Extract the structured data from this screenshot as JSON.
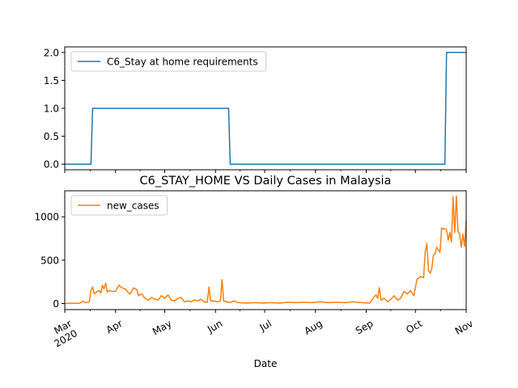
{
  "chart_data": [
    {
      "type": "line",
      "title": "",
      "xlabel": "",
      "ylabel": "",
      "ylim": [
        -0.1,
        2.1
      ],
      "yticks": [
        0.0,
        0.5,
        1.0,
        1.5,
        2.0
      ],
      "ytick_labels": [
        "0.0",
        "0.5",
        "1.0",
        "1.5",
        "2.0"
      ],
      "legend_position": "upper-left",
      "series": [
        {
          "name": "C6_Stay at home requirements",
          "color": "#1f77b4",
          "points": [
            [
              "2020-03-01",
              0
            ],
            [
              "2020-03-17",
              0
            ],
            [
              "2020-03-18",
              1
            ],
            [
              "2020-06-09",
              1
            ],
            [
              "2020-06-10",
              0
            ],
            [
              "2020-10-19",
              0
            ],
            [
              "2020-10-20",
              2
            ],
            [
              "2020-11-01",
              2
            ]
          ]
        }
      ]
    },
    {
      "type": "line",
      "title": "C6_STAY_HOME VS Daily Cases in Malaysia",
      "xlabel": "Date",
      "ylabel": "",
      "xlim": [
        "2020-03-01",
        "2020-11-01"
      ],
      "ylim": [
        -70,
        1300
      ],
      "yticks": [
        0,
        500,
        1000
      ],
      "ytick_labels": [
        "0",
        "500",
        "1000"
      ],
      "xticks": [
        "2020-03-01",
        "2020-04-01",
        "2020-05-01",
        "2020-06-01",
        "2020-07-01",
        "2020-08-01",
        "2020-09-01",
        "2020-10-01",
        "2020-11-01"
      ],
      "xtick_labels": [
        "Mar\n2020",
        "Apr",
        "May",
        "Jun",
        "Jul",
        "Aug",
        "Sep",
        "Oct",
        "Nov"
      ],
      "legend_position": "upper-left",
      "series": [
        {
          "name": "new_cases",
          "color": "#ff7f0e",
          "points": [
            [
              "2020-03-01",
              0
            ],
            [
              "2020-03-05",
              5
            ],
            [
              "2020-03-10",
              2
            ],
            [
              "2020-03-12",
              25
            ],
            [
              "2020-03-14",
              10
            ],
            [
              "2020-03-16",
              20
            ],
            [
              "2020-03-17",
              150
            ],
            [
              "2020-03-18",
              190
            ],
            [
              "2020-03-19",
              110
            ],
            [
              "2020-03-20",
              130
            ],
            [
              "2020-03-22",
              150
            ],
            [
              "2020-03-23",
              120
            ],
            [
              "2020-03-24",
              210
            ],
            [
              "2020-03-25",
              170
            ],
            [
              "2020-03-26",
              235
            ],
            [
              "2020-03-27",
              130
            ],
            [
              "2020-03-28",
              150
            ],
            [
              "2020-03-30",
              140
            ],
            [
              "2020-04-01",
              140
            ],
            [
              "2020-04-03",
              210
            ],
            [
              "2020-04-05",
              180
            ],
            [
              "2020-04-07",
              170
            ],
            [
              "2020-04-09",
              120
            ],
            [
              "2020-04-10",
              110
            ],
            [
              "2020-04-12",
              180
            ],
            [
              "2020-04-14",
              160
            ],
            [
              "2020-04-15",
              90
            ],
            [
              "2020-04-17",
              110
            ],
            [
              "2020-04-19",
              60
            ],
            [
              "2020-04-21",
              40
            ],
            [
              "2020-04-23",
              70
            ],
            [
              "2020-04-25",
              50
            ],
            [
              "2020-04-27",
              40
            ],
            [
              "2020-04-29",
              90
            ],
            [
              "2020-05-01",
              60
            ],
            [
              "2020-05-03",
              100
            ],
            [
              "2020-05-05",
              40
            ],
            [
              "2020-05-07",
              30
            ],
            [
              "2020-05-09",
              60
            ],
            [
              "2020-05-11",
              70
            ],
            [
              "2020-05-13",
              20
            ],
            [
              "2020-05-15",
              30
            ],
            [
              "2020-05-17",
              20
            ],
            [
              "2020-05-19",
              40
            ],
            [
              "2020-05-21",
              30
            ],
            [
              "2020-05-23",
              50
            ],
            [
              "2020-05-25",
              20
            ],
            [
              "2020-05-27",
              15
            ],
            [
              "2020-05-28",
              190
            ],
            [
              "2020-05-29",
              30
            ],
            [
              "2020-05-31",
              30
            ],
            [
              "2020-06-02",
              20
            ],
            [
              "2020-06-04",
              30
            ],
            [
              "2020-06-05",
              275
            ],
            [
              "2020-06-06",
              30
            ],
            [
              "2020-06-08",
              20
            ],
            [
              "2020-06-10",
              10
            ],
            [
              "2020-06-12",
              30
            ],
            [
              "2020-06-15",
              10
            ],
            [
              "2020-06-20",
              5
            ],
            [
              "2020-06-25",
              10
            ],
            [
              "2020-06-30",
              5
            ],
            [
              "2020-07-05",
              10
            ],
            [
              "2020-07-10",
              5
            ],
            [
              "2020-07-15",
              15
            ],
            [
              "2020-07-20",
              10
            ],
            [
              "2020-07-25",
              15
            ],
            [
              "2020-07-30",
              10
            ],
            [
              "2020-08-04",
              20
            ],
            [
              "2020-08-09",
              10
            ],
            [
              "2020-08-14",
              15
            ],
            [
              "2020-08-19",
              10
            ],
            [
              "2020-08-24",
              20
            ],
            [
              "2020-08-29",
              10
            ],
            [
              "2020-09-03",
              5
            ],
            [
              "2020-09-06",
              80
            ],
            [
              "2020-09-07",
              100
            ],
            [
              "2020-09-08",
              60
            ],
            [
              "2020-09-09",
              182
            ],
            [
              "2020-09-10",
              40
            ],
            [
              "2020-09-12",
              60
            ],
            [
              "2020-09-14",
              20
            ],
            [
              "2020-09-16",
              50
            ],
            [
              "2020-09-18",
              90
            ],
            [
              "2020-09-20",
              40
            ],
            [
              "2020-09-22",
              60
            ],
            [
              "2020-09-24",
              140
            ],
            [
              "2020-09-26",
              110
            ],
            [
              "2020-09-28",
              150
            ],
            [
              "2020-09-30",
              90
            ],
            [
              "2020-10-02",
              280
            ],
            [
              "2020-10-04",
              310
            ],
            [
              "2020-10-06",
              300
            ],
            [
              "2020-10-07",
              600
            ],
            [
              "2020-10-08",
              690
            ],
            [
              "2020-10-09",
              380
            ],
            [
              "2020-10-10",
              350
            ],
            [
              "2020-10-11",
              400
            ],
            [
              "2020-10-12",
              560
            ],
            [
              "2020-10-13",
              570
            ],
            [
              "2020-10-14",
              650
            ],
            [
              "2020-10-15",
              620
            ],
            [
              "2020-10-16",
              590
            ],
            [
              "2020-10-17",
              870
            ],
            [
              "2020-10-18",
              860
            ],
            [
              "2020-10-19",
              865
            ],
            [
              "2020-10-20",
              850
            ],
            [
              "2020-10-21",
              730
            ],
            [
              "2020-10-22",
              820
            ],
            [
              "2020-10-23",
              710
            ],
            [
              "2020-10-24",
              1230
            ],
            [
              "2020-10-25",
              820
            ],
            [
              "2020-10-26",
              1240
            ],
            [
              "2020-10-27",
              830
            ],
            [
              "2020-10-28",
              800
            ],
            [
              "2020-10-29",
              650
            ],
            [
              "2020-10-30",
              800
            ],
            [
              "2020-10-31",
              660
            ],
            [
              "2020-11-01",
              960
            ]
          ]
        }
      ]
    }
  ]
}
